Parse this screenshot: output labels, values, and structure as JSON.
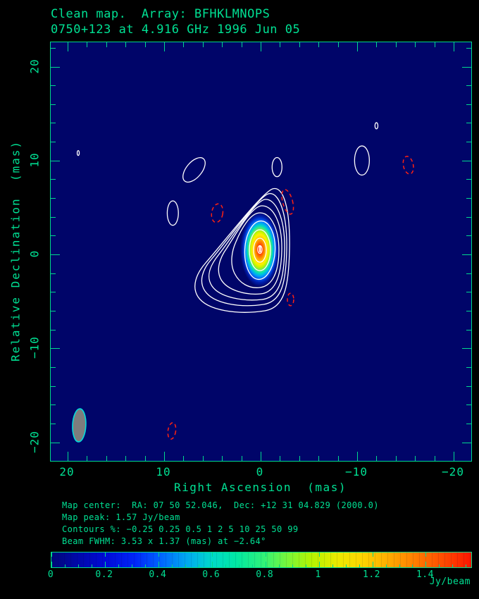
{
  "chart_data": {
    "type": "contour_map",
    "title": "Clean map.  Array: BFHKLMNOPS",
    "subtitle": "0750+123 at 4.916 GHz 1996 Jun 05",
    "source_name": "0750+123",
    "frequency_ghz": 4.916,
    "observation_date": "1996 Jun 05",
    "array_stations": "BFHKLMNOPS",
    "xlabel": "Right Ascension  (mas)",
    "ylabel": "Relative Declination  (mas)",
    "xlim": [
      21.8,
      -21.8
    ],
    "ylim": [
      -22.0,
      22.6
    ],
    "x_major_ticks": [
      {
        "v": 20,
        "label": "20"
      },
      {
        "v": 10,
        "label": "10"
      },
      {
        "v": 0,
        "label": "0"
      },
      {
        "v": -10,
        "label": "−10"
      },
      {
        "v": -20,
        "label": "−20"
      }
    ],
    "y_major_ticks": [
      {
        "v": 20,
        "label": "20"
      },
      {
        "v": 10,
        "label": "10"
      },
      {
        "v": 0,
        "label": "0"
      },
      {
        "v": -10,
        "label": "−10"
      },
      {
        "v": -20,
        "label": "−20"
      }
    ],
    "minor_tick_step_mas": 2,
    "map_center": {
      "ra": "07 50 52.046",
      "dec": "+12 31 04.829",
      "equinox": "2000.0"
    },
    "map_peak_jy_per_beam": 1.57,
    "contour_levels_percent": [
      -0.25,
      0.25,
      0.5,
      1,
      2,
      5,
      10,
      25,
      50,
      99
    ],
    "positive_contour_style": "white solid",
    "negative_contour_style": "red dashed",
    "peak_position_mas": {
      "x": 0,
      "y": 0
    },
    "jet_direction": "southwest",
    "beam_fwhm": {
      "major_mas": 3.53,
      "minor_mas": 1.37,
      "position_angle_deg": -2.64
    },
    "beam_position_mas": {
      "x": 18.8,
      "y": -18.2
    },
    "colorbar": {
      "min": 0,
      "max": 1.57,
      "unit": "Jy/beam",
      "ticks": [
        {
          "v": 0,
          "label": "0"
        },
        {
          "v": 0.2,
          "label": "0.2"
        },
        {
          "v": 0.4,
          "label": "0.4"
        },
        {
          "v": 0.6,
          "label": "0.6"
        },
        {
          "v": 0.8,
          "label": "0.8"
        },
        {
          "v": 1,
          "label": "1"
        },
        {
          "v": 1.2,
          "label": "1.2"
        },
        {
          "v": 1.4,
          "label": "1.4"
        }
      ],
      "minor_tick_step": 0.05
    },
    "positive_isolated_contours": [
      {
        "x": 18.9,
        "y": 10.8,
        "rx": 0.11,
        "ry": 0.26,
        "rot": 0,
        "note": "tiny speck"
      },
      {
        "x": 6.9,
        "y": 9.0,
        "rx": 0.8,
        "ry": 1.55,
        "rot": 40,
        "note": "bean-shaped blob"
      },
      {
        "x": -1.7,
        "y": 9.3,
        "rx": 0.51,
        "ry": 1.02,
        "rot": 0
      },
      {
        "x": -10.5,
        "y": 10.0,
        "rx": 0.77,
        "ry": 1.55,
        "rot": 0
      },
      {
        "x": -12.0,
        "y": 13.7,
        "rx": 0.15,
        "ry": 0.33,
        "rot": 0,
        "note": "tiny speck"
      },
      {
        "x": 9.1,
        "y": 4.4,
        "rx": 0.58,
        "ry": 1.3,
        "rot": 0
      }
    ],
    "negative_isolated_contours": [
      {
        "x": -15.3,
        "y": 9.5,
        "rx": 0.51,
        "ry": 0.95,
        "rot": -12
      },
      {
        "x": 4.5,
        "y": 4.4,
        "rx": 0.58,
        "ry": 1.0,
        "rot": 10
      },
      {
        "x": -2.8,
        "y": 5.6,
        "rx": 0.51,
        "ry": 1.35,
        "rot": -15
      },
      {
        "x": -3.1,
        "y": -4.8,
        "rx": 0.33,
        "ry": 0.66,
        "rot": 0
      },
      {
        "x": 9.2,
        "y": -18.8,
        "rx": 0.4,
        "ry": 0.88,
        "rot": 8
      }
    ]
  },
  "footer": {
    "lines": [
      "Map center:  RA: 07 50 52.046,  Dec: +12 31 04.829 (2000.0)",
      "Map peak: 1.57 Jy/beam",
      "Contours %: −0.25 0.25 0.5 1 2 5 10 25 50 99",
      "Beam FWHM: 3.53 x 1.37 (mas) at −2.64°"
    ]
  },
  "colors": {
    "annotation_green": "#00e093",
    "frame_green": "#00d88c",
    "map_background": "#000569",
    "positive_contour": "#ffffff",
    "negative_contour": "#ff2211",
    "beam_fill": "#7d7d7d",
    "beam_outline": "#00dcdc",
    "page_background": "#000000"
  }
}
